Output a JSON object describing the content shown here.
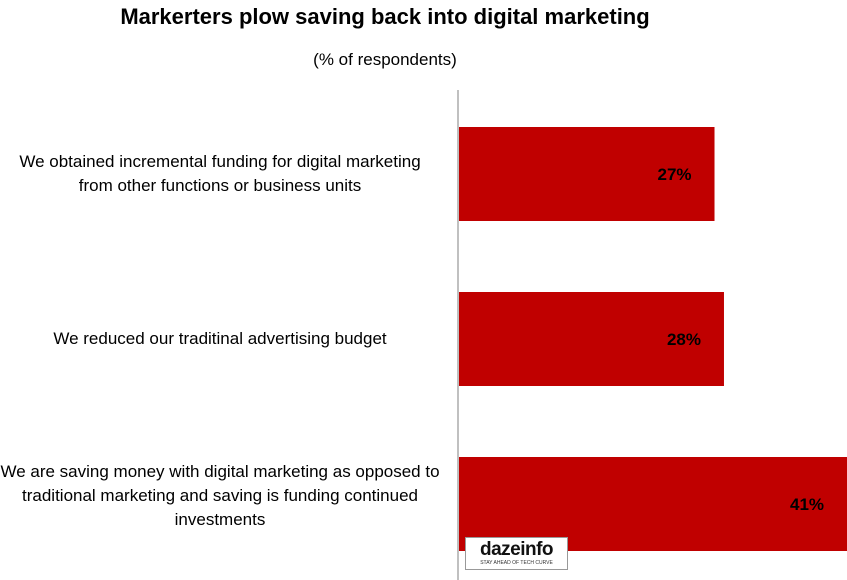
{
  "chart_data": {
    "type": "bar",
    "orientation": "horizontal",
    "title": "Markerters plow saving back into digital marketing",
    "subtitle": "(% of respondents)",
    "categories": [
      "We obtained incremental funding for digital marketing from other functions or business units",
      "We reduced our traditinal advertising budget",
      "We are saving money with digital marketing as opposed to traditional marketing and saving is funding continued investments"
    ],
    "values": [
      27,
      28,
      41
    ],
    "data_labels": [
      "27%",
      "28%",
      "41%"
    ],
    "xlim": [
      0,
      41
    ],
    "grid": false,
    "legend": "none",
    "bar_color": "#c00000"
  },
  "watermark": {
    "text": "dazeinfo",
    "tagline": "STAY AHEAD OF TECH CURVE"
  }
}
